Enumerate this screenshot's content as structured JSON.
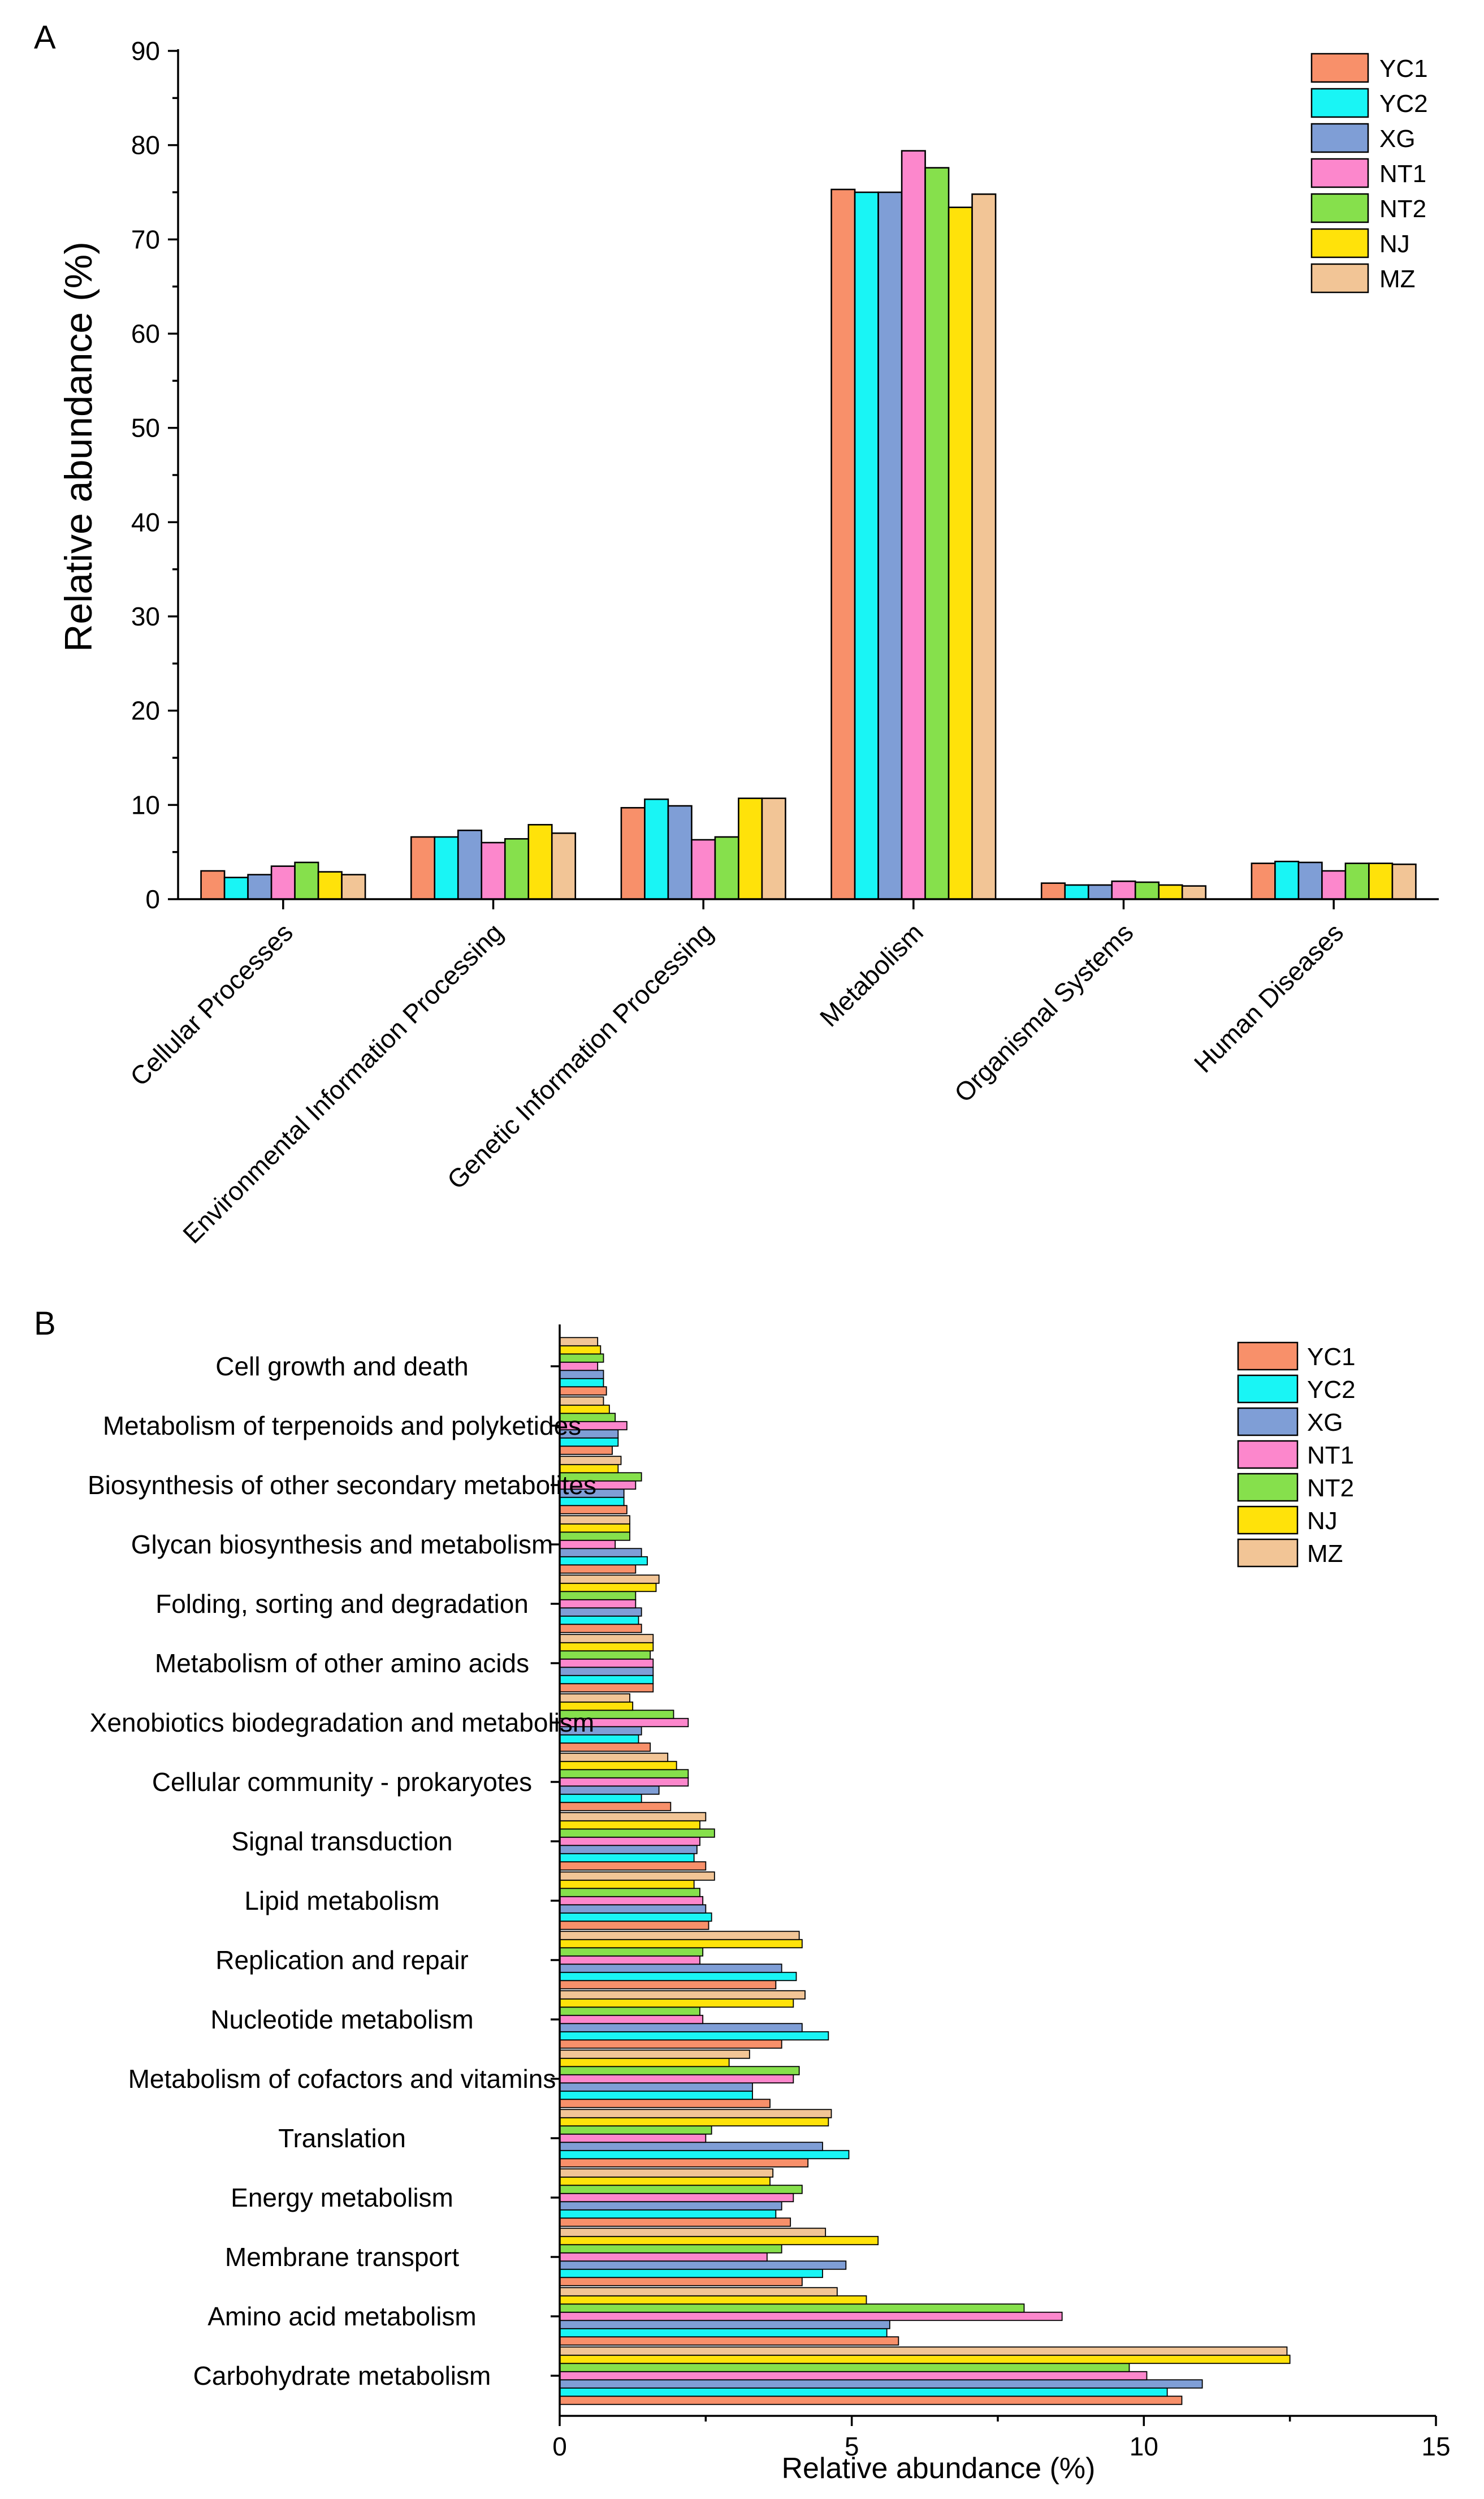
{
  "colors": {
    "YC1": "#f8906a",
    "YC2": "#19f5f5",
    "XG": "#7f9ed6",
    "NT1": "#fc87cc",
    "NT2": "#86e04c",
    "NJ": "#ffe20a",
    "MZ": "#f2c596"
  },
  "chart_data": [
    {
      "panel": "A",
      "type": "bar",
      "orientation": "vertical",
      "title": "",
      "xlabel": "",
      "ylabel": "Relative abundance (%)",
      "ylim": [
        0,
        90
      ],
      "yticks": [
        0,
        10,
        20,
        30,
        40,
        50,
        60,
        70,
        80,
        90
      ],
      "legend_position": "top-right",
      "categories": [
        "Cellular Processes",
        "Environmental Information Processing",
        "Genetic Information Processing",
        "Metabolism",
        "Organismal Systems",
        "Human Diseases"
      ],
      "series": [
        {
          "name": "YC1",
          "values": [
            3.0,
            6.6,
            9.7,
            75.3,
            1.7,
            3.8
          ]
        },
        {
          "name": "YC2",
          "values": [
            2.3,
            6.6,
            10.6,
            75.0,
            1.5,
            4.0
          ]
        },
        {
          "name": "XG",
          "values": [
            2.6,
            7.3,
            9.9,
            75.0,
            1.5,
            3.9
          ]
        },
        {
          "name": "NT1",
          "values": [
            3.5,
            6.0,
            6.3,
            79.4,
            1.9,
            3.0
          ]
        },
        {
          "name": "NT2",
          "values": [
            3.9,
            6.4,
            6.6,
            77.6,
            1.8,
            3.8
          ]
        },
        {
          "name": "NJ",
          "values": [
            2.9,
            7.9,
            10.7,
            73.4,
            1.5,
            3.8
          ]
        },
        {
          "name": "MZ",
          "values": [
            2.6,
            7.0,
            10.7,
            74.8,
            1.4,
            3.7
          ]
        }
      ]
    },
    {
      "panel": "B",
      "type": "bar",
      "orientation": "horizontal",
      "title": "",
      "xlabel": "Relative abundance (%)",
      "ylabel": "",
      "xlim": [
        0,
        15
      ],
      "xticks": [
        0,
        5,
        10,
        15
      ],
      "legend_position": "top-right",
      "categories": [
        "Cell growth and death",
        "Metabolism of terpenoids and polyketides",
        "Biosynthesis of other secondary metabolites",
        "Glycan biosynthesis and metabolism",
        "Folding, sorting and degradation",
        "Metabolism of other amino acids",
        "Xenobiotics biodegradation and metabolism",
        "Cellular community - prokaryotes",
        "Signal transduction",
        "Lipid metabolism",
        "Replication and repair",
        "Nucleotide metabolism",
        "Metabolism of cofactors and vitamins",
        "Translation",
        "Energy metabolism",
        "Membrane transport",
        "Amino acid metabolism",
        "Carbohydrate metabolism"
      ],
      "series": [
        {
          "name": "YC1",
          "values": [
            0.8,
            0.9,
            1.15,
            1.3,
            1.4,
            1.6,
            1.55,
            1.9,
            2.5,
            2.55,
            3.7,
            3.8,
            3.6,
            4.25,
            3.95,
            4.15,
            5.8,
            10.65
          ]
        },
        {
          "name": "YC2",
          "values": [
            0.75,
            1.0,
            1.1,
            1.5,
            1.35,
            1.6,
            1.35,
            1.4,
            2.3,
            2.6,
            4.05,
            4.6,
            3.3,
            4.95,
            3.7,
            4.5,
            5.6,
            10.4
          ]
        },
        {
          "name": "XG",
          "values": [
            0.75,
            1.0,
            1.1,
            1.4,
            1.4,
            1.6,
            1.4,
            1.7,
            2.35,
            2.5,
            3.8,
            4.15,
            3.3,
            4.5,
            3.8,
            4.9,
            5.65,
            11.0
          ]
        },
        {
          "name": "NT1",
          "values": [
            0.65,
            1.15,
            1.3,
            0.95,
            1.3,
            1.6,
            2.2,
            2.2,
            2.4,
            2.45,
            2.4,
            2.45,
            4.0,
            2.5,
            4.0,
            3.55,
            8.6,
            10.05
          ]
        },
        {
          "name": "NT2",
          "values": [
            0.75,
            0.95,
            1.4,
            1.2,
            1.3,
            1.55,
            1.95,
            2.2,
            2.65,
            2.4,
            2.45,
            2.4,
            4.1,
            2.6,
            4.15,
            3.8,
            7.95,
            9.75
          ]
        },
        {
          "name": "NJ",
          "values": [
            0.7,
            0.85,
            1.0,
            1.2,
            1.65,
            1.6,
            1.25,
            2.0,
            2.4,
            2.3,
            4.15,
            4.0,
            2.9,
            4.6,
            3.6,
            5.45,
            5.25,
            12.5
          ]
        },
        {
          "name": "MZ",
          "values": [
            0.65,
            0.75,
            1.05,
            1.2,
            1.7,
            1.6,
            1.2,
            1.85,
            2.5,
            2.65,
            4.1,
            4.2,
            3.25,
            4.65,
            3.65,
            4.55,
            4.75,
            12.45
          ]
        }
      ]
    }
  ]
}
